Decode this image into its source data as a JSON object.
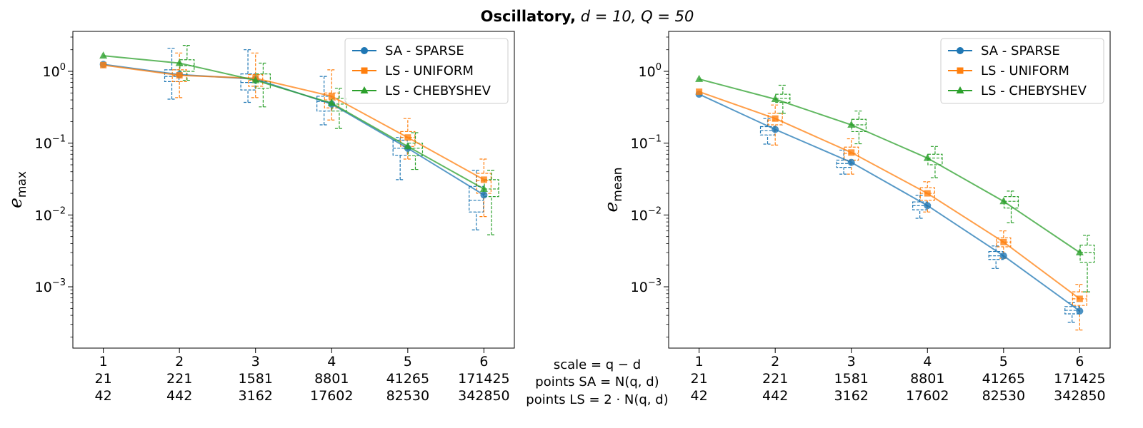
{
  "figure": {
    "title_bold": "Oscillatory,",
    "title_rest": "d = 10, Q = 50",
    "center_labels": [
      "scale = q − d",
      "points SA = N(q, d)",
      "points LS = 2 · N(q, d)"
    ]
  },
  "colors": {
    "sa": "#1f77b4",
    "ls_uniform": "#ff7f0e",
    "ls_chebyshev": "#2ca02c"
  },
  "chart_data": [
    {
      "type": "line",
      "ylabel": "e_max",
      "yscale": "log",
      "ylim": [
        0.00014,
        3.6
      ],
      "x": [
        1,
        2,
        3,
        4,
        5,
        6
      ],
      "x_tick_rows": [
        [
          "1",
          "2",
          "3",
          "4",
          "5",
          "6"
        ],
        [
          "21",
          "221",
          "1581",
          "8801",
          "41265",
          "171425"
        ],
        [
          "42",
          "442",
          "3162",
          "17602",
          "82530",
          "342850"
        ]
      ],
      "y_ticks": [
        "10^0",
        "10^-1",
        "10^-2",
        "10^-3"
      ],
      "legend": "top-right",
      "series": [
        {
          "name": "SA - SPARSE",
          "marker": "circle",
          "values": [
            1.25,
            0.9,
            0.78,
            0.35,
            0.085,
            0.019
          ],
          "boxes": [
            [
              0.41,
              0.72,
              0.85,
              1.05,
              2.1
            ],
            [
              0.37,
              0.55,
              0.7,
              0.92,
              2.0
            ],
            [
              0.18,
              0.28,
              0.38,
              0.45,
              0.85
            ],
            [
              0.031,
              0.068,
              0.085,
              0.11,
              0.12
            ],
            [
              0.0062,
              0.011,
              0.016,
              0.025,
              0.042
            ]
          ]
        },
        {
          "name": "LS - UNIFORM",
          "marker": "square",
          "values": [
            1.22,
            0.88,
            0.8,
            0.45,
            0.12,
            0.031
          ],
          "boxes": [
            [
              0.43,
              0.72,
              0.88,
              1.05,
              1.8
            ],
            [
              0.43,
              0.62,
              0.75,
              0.9,
              1.8
            ],
            [
              0.21,
              0.31,
              0.4,
              0.5,
              1.05
            ],
            [
              0.06,
              0.09,
              0.12,
              0.145,
              0.22
            ],
            [
              0.0095,
              0.02,
              0.03,
              0.038,
              0.06
            ]
          ]
        },
        {
          "name": "LS - CHEBYSHEV",
          "marker": "triangle",
          "values": [
            1.65,
            1.3,
            0.75,
            0.36,
            0.09,
            0.023
          ],
          "boxes": [
            [
              0.75,
              1.0,
              1.2,
              1.45,
              2.3
            ],
            [
              0.32,
              0.58,
              0.72,
              0.92,
              1.3
            ],
            [
              0.16,
              0.28,
              0.35,
              0.42,
              0.58
            ],
            [
              0.043,
              0.067,
              0.085,
              0.1,
              0.14
            ],
            [
              0.0053,
              0.018,
              0.023,
              0.031,
              0.042
            ]
          ]
        }
      ]
    },
    {
      "type": "line",
      "ylabel": "e_mean",
      "yscale": "log",
      "ylim": [
        0.00014,
        3.6
      ],
      "x": [
        1,
        2,
        3,
        4,
        5,
        6
      ],
      "x_tick_rows": [
        [
          "1",
          "2",
          "3",
          "4",
          "5",
          "6"
        ],
        [
          "21",
          "221",
          "1581",
          "8801",
          "41265",
          "171425"
        ],
        [
          "42",
          "442",
          "3162",
          "17602",
          "82530",
          "342850"
        ]
      ],
      "y_ticks": [
        "10^0",
        "10^-1",
        "10^-2",
        "10^-3"
      ],
      "legend": "top-right",
      "series": [
        {
          "name": "SA - SPARSE",
          "marker": "circle",
          "values": [
            0.48,
            0.155,
            0.054,
            0.0135,
            0.0027,
            0.00046
          ],
          "boxes": [
            [
              0.097,
              0.13,
              0.15,
              0.17,
              0.22
            ],
            [
              0.037,
              0.046,
              0.052,
              0.058,
              0.08
            ],
            [
              0.009,
              0.0118,
              0.0135,
              0.0152,
              0.0188
            ],
            [
              0.0018,
              0.0024,
              0.0027,
              0.0031,
              0.0037
            ],
            [
              0.00032,
              0.00042,
              0.00047,
              0.00053,
              0.0006
            ]
          ]
        },
        {
          "name": "LS - UNIFORM",
          "marker": "square",
          "values": [
            0.52,
            0.22,
            0.074,
            0.02,
            0.0042,
            0.00068
          ],
          "boxes": [
            [
              0.094,
              0.18,
              0.21,
              0.26,
              0.34
            ],
            [
              0.037,
              0.058,
              0.072,
              0.088,
              0.115
            ],
            [
              0.011,
              0.016,
              0.02,
              0.024,
              0.029
            ],
            [
              0.0025,
              0.0036,
              0.0042,
              0.0048,
              0.006
            ],
            [
              0.00025,
              0.00055,
              0.00068,
              0.00085,
              0.00108
            ]
          ]
        },
        {
          "name": "LS - CHEBYSHEV",
          "marker": "triangle",
          "values": [
            0.78,
            0.41,
            0.18,
            0.062,
            0.0155,
            0.003
          ],
          "boxes": [
            [
              0.26,
              0.37,
              0.42,
              0.48,
              0.64
            ],
            [
              0.098,
              0.145,
              0.18,
              0.215,
              0.28
            ],
            [
              0.033,
              0.05,
              0.062,
              0.07,
              0.09
            ],
            [
              0.0078,
              0.0125,
              0.0155,
              0.018,
              0.0215
            ],
            [
              0.00085,
              0.0022,
              0.003,
              0.0038,
              0.0052
            ]
          ]
        }
      ]
    }
  ]
}
